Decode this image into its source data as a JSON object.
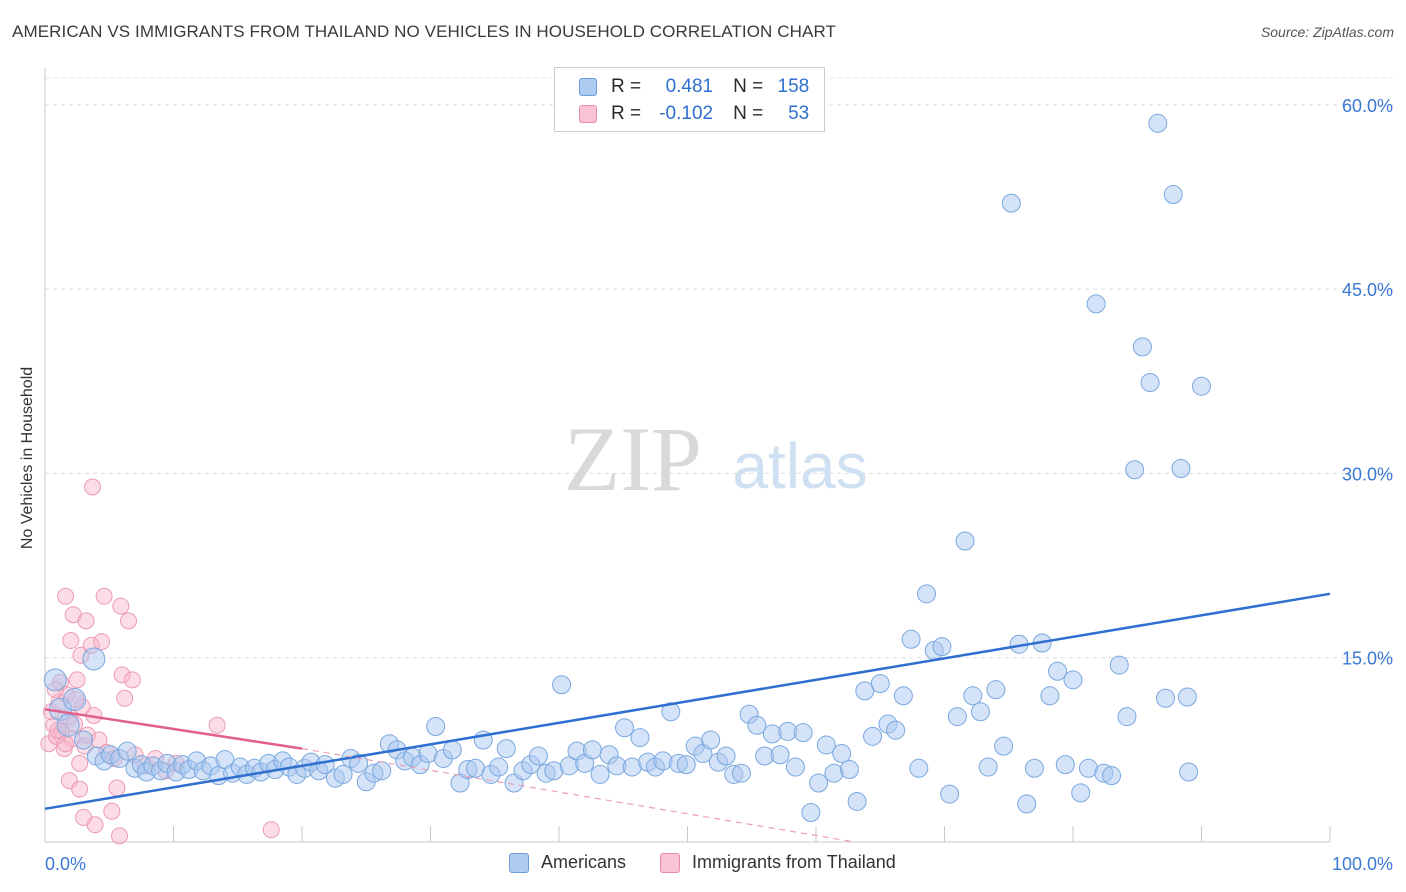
{
  "title": "AMERICAN VS IMMIGRANTS FROM THAILAND NO VEHICLES IN HOUSEHOLD CORRELATION CHART",
  "source": "Source: ZipAtlas.com",
  "watermark": {
    "zip": "ZIP",
    "atlas": "atlas"
  },
  "legend": {
    "r_label": "R =",
    "n_label": "N =",
    "rows": [
      {
        "name": "Americans",
        "r": "0.481",
        "n": "158",
        "color": "#aecbf0",
        "stroke": "#6a9fdc"
      },
      {
        "name": "Immigrants from Thailand",
        "r": "-0.102",
        "n": "53",
        "color": "#f8c3d3",
        "stroke": "#e88aa8"
      }
    ]
  },
  "chart_data": {
    "type": "scatter",
    "ylabel": "No Vehicles in Household",
    "xlim": [
      0,
      100
    ],
    "ylim": [
      0,
      63
    ],
    "x_tick_labels": [
      "0.0%",
      "100.0%"
    ],
    "y_ticks": [
      15,
      30,
      45,
      60
    ],
    "y_tick_labels": [
      "15.0%",
      "30.0%",
      "45.0%",
      "60.0%"
    ],
    "grid": true,
    "colors": {
      "blue": "#2f6fd0",
      "pink": "#e0608a",
      "tick_label": "#3a78d4"
    },
    "series": [
      {
        "name": "Americans",
        "trend": {
          "x": [
            0,
            100
          ],
          "y": [
            2.7,
            20.2
          ],
          "style": "solid"
        },
        "points": [
          [
            0.8,
            13.2
          ],
          [
            1.2,
            10.8
          ],
          [
            1.8,
            9.5
          ],
          [
            2.3,
            11.6
          ],
          [
            3.0,
            8.3
          ],
          [
            3.8,
            14.9
          ],
          [
            4.0,
            7.0
          ],
          [
            4.6,
            6.6
          ],
          [
            5.1,
            7.1
          ],
          [
            5.8,
            6.8
          ],
          [
            6.4,
            7.4
          ],
          [
            7.0,
            6.0
          ],
          [
            7.5,
            6.3
          ],
          [
            7.9,
            5.7
          ],
          [
            8.4,
            6.2
          ],
          [
            9.0,
            5.8
          ],
          [
            9.5,
            6.4
          ],
          [
            10.2,
            5.7
          ],
          [
            10.7,
            6.3
          ],
          [
            11.2,
            5.9
          ],
          [
            11.8,
            6.6
          ],
          [
            12.3,
            5.8
          ],
          [
            12.9,
            6.2
          ],
          [
            13.5,
            5.4
          ],
          [
            14.0,
            6.7
          ],
          [
            14.6,
            5.6
          ],
          [
            15.2,
            6.1
          ],
          [
            15.7,
            5.5
          ],
          [
            16.3,
            6.0
          ],
          [
            16.8,
            5.7
          ],
          [
            17.4,
            6.4
          ],
          [
            17.9,
            5.9
          ],
          [
            18.5,
            6.6
          ],
          [
            19.0,
            6.1
          ],
          [
            19.6,
            5.5
          ],
          [
            20.2,
            6.0
          ],
          [
            20.7,
            6.5
          ],
          [
            21.3,
            5.8
          ],
          [
            21.8,
            6.3
          ],
          [
            22.6,
            5.2
          ],
          [
            23.2,
            5.5
          ],
          [
            23.8,
            6.8
          ],
          [
            24.4,
            6.4
          ],
          [
            25.0,
            4.9
          ],
          [
            25.6,
            5.6
          ],
          [
            26.2,
            5.8
          ],
          [
            26.8,
            8.0
          ],
          [
            27.4,
            7.5
          ],
          [
            28.0,
            6.6
          ],
          [
            28.6,
            6.9
          ],
          [
            29.2,
            6.3
          ],
          [
            29.8,
            7.2
          ],
          [
            30.4,
            9.4
          ],
          [
            31.0,
            6.8
          ],
          [
            31.7,
            7.5
          ],
          [
            32.3,
            4.8
          ],
          [
            32.9,
            5.9
          ],
          [
            33.5,
            6.0
          ],
          [
            34.1,
            8.3
          ],
          [
            34.7,
            5.5
          ],
          [
            35.3,
            6.1
          ],
          [
            35.9,
            7.6
          ],
          [
            36.5,
            4.8
          ],
          [
            37.2,
            5.8
          ],
          [
            37.8,
            6.3
          ],
          [
            38.4,
            7.0
          ],
          [
            39.0,
            5.6
          ],
          [
            39.6,
            5.8
          ],
          [
            40.2,
            12.8
          ],
          [
            40.8,
            6.2
          ],
          [
            41.4,
            7.4
          ],
          [
            42.0,
            6.4
          ],
          [
            42.6,
            7.5
          ],
          [
            43.2,
            5.5
          ],
          [
            43.9,
            7.1
          ],
          [
            44.5,
            6.2
          ],
          [
            45.1,
            9.3
          ],
          [
            45.7,
            6.1
          ],
          [
            46.3,
            8.5
          ],
          [
            46.9,
            6.5
          ],
          [
            47.5,
            6.1
          ],
          [
            48.1,
            6.6
          ],
          [
            48.7,
            10.6
          ],
          [
            49.3,
            6.4
          ],
          [
            49.9,
            6.3
          ],
          [
            50.6,
            7.8
          ],
          [
            51.2,
            7.2
          ],
          [
            51.8,
            8.3
          ],
          [
            52.4,
            6.5
          ],
          [
            53.0,
            7.0
          ],
          [
            53.6,
            5.5
          ],
          [
            54.2,
            5.6
          ],
          [
            54.8,
            10.4
          ],
          [
            55.4,
            9.5
          ],
          [
            56.0,
            7.0
          ],
          [
            56.6,
            8.8
          ],
          [
            57.2,
            7.1
          ],
          [
            57.8,
            9.0
          ],
          [
            58.4,
            6.1
          ],
          [
            59.0,
            8.9
          ],
          [
            59.6,
            2.4
          ],
          [
            60.2,
            4.8
          ],
          [
            60.8,
            7.9
          ],
          [
            61.4,
            5.6
          ],
          [
            62.0,
            7.2
          ],
          [
            62.6,
            5.9
          ],
          [
            63.2,
            3.3
          ],
          [
            63.8,
            12.3
          ],
          [
            64.4,
            8.6
          ],
          [
            65.0,
            12.9
          ],
          [
            65.6,
            9.6
          ],
          [
            66.2,
            9.1
          ],
          [
            66.8,
            11.9
          ],
          [
            67.4,
            16.5
          ],
          [
            68.0,
            6.0
          ],
          [
            68.6,
            20.2
          ],
          [
            69.2,
            15.6
          ],
          [
            69.8,
            15.9
          ],
          [
            70.4,
            3.9
          ],
          [
            71.0,
            10.2
          ],
          [
            71.6,
            24.5
          ],
          [
            72.2,
            11.9
          ],
          [
            72.8,
            10.6
          ],
          [
            73.4,
            6.1
          ],
          [
            74.0,
            12.4
          ],
          [
            74.6,
            7.8
          ],
          [
            75.2,
            52.0
          ],
          [
            75.8,
            16.1
          ],
          [
            76.4,
            3.1
          ],
          [
            77.0,
            6.0
          ],
          [
            77.6,
            16.2
          ],
          [
            78.2,
            11.9
          ],
          [
            78.8,
            13.9
          ],
          [
            79.4,
            6.3
          ],
          [
            80.0,
            13.2
          ],
          [
            80.6,
            4.0
          ],
          [
            81.2,
            6.0
          ],
          [
            81.8,
            43.8
          ],
          [
            82.4,
            5.6
          ],
          [
            83.0,
            5.4
          ],
          [
            83.6,
            14.4
          ],
          [
            84.2,
            10.2
          ],
          [
            84.8,
            30.3
          ],
          [
            85.4,
            40.3
          ],
          [
            86.0,
            37.4
          ],
          [
            86.6,
            58.5
          ],
          [
            87.2,
            11.7
          ],
          [
            87.8,
            52.7
          ],
          [
            88.4,
            30.4
          ],
          [
            89.0,
            5.7
          ],
          [
            90.0,
            37.1
          ],
          [
            88.9,
            11.8
          ]
        ]
      },
      {
        "name": "Immigrants from Thailand",
        "trend": {
          "x": [
            0,
            20
          ],
          "y": [
            10.8,
            7.6
          ],
          "style": "solid",
          "dashed_extension": {
            "x": [
              20,
              63
            ],
            "y": [
              7.6,
              0
            ]
          }
        },
        "points": [
          [
            0.3,
            8.0
          ],
          [
            0.5,
            10.6
          ],
          [
            0.7,
            9.5
          ],
          [
            0.9,
            8.6
          ],
          [
            1.1,
            11.4
          ],
          [
            1.3,
            9.0
          ],
          [
            1.5,
            7.6
          ],
          [
            1.7,
            12.0
          ],
          [
            1.9,
            10.2
          ],
          [
            2.1,
            8.4
          ],
          [
            2.3,
            9.6
          ],
          [
            2.5,
            13.2
          ],
          [
            2.7,
            6.4
          ],
          [
            2.9,
            11.0
          ],
          [
            3.1,
            7.8
          ],
          [
            3.3,
            8.7
          ],
          [
            1.6,
            20.0
          ],
          [
            2.2,
            18.5
          ],
          [
            2.0,
            16.4
          ],
          [
            3.2,
            18.0
          ],
          [
            2.8,
            15.2
          ],
          [
            3.6,
            16.0
          ],
          [
            4.4,
            16.3
          ],
          [
            4.6,
            20.0
          ],
          [
            3.7,
            28.9
          ],
          [
            5.9,
            19.2
          ],
          [
            6.5,
            18.0
          ],
          [
            6.0,
            13.6
          ],
          [
            6.2,
            11.7
          ],
          [
            6.8,
            13.2
          ],
          [
            3.8,
            10.3
          ],
          [
            4.2,
            8.3
          ],
          [
            4.8,
            7.3
          ],
          [
            5.4,
            6.8
          ],
          [
            5.6,
            4.4
          ],
          [
            7.0,
            7.1
          ],
          [
            7.8,
            6.2
          ],
          [
            8.6,
            6.8
          ],
          [
            9.4,
            5.8
          ],
          [
            10.2,
            6.4
          ],
          [
            13.4,
            9.5
          ],
          [
            1.9,
            5.0
          ],
          [
            2.7,
            4.3
          ],
          [
            3.9,
            1.4
          ],
          [
            5.2,
            2.5
          ],
          [
            5.8,
            0.5
          ],
          [
            17.6,
            1.0
          ],
          [
            3.0,
            2.0
          ],
          [
            1.2,
            13.0
          ],
          [
            0.8,
            12.4
          ],
          [
            2.4,
            11.6
          ],
          [
            1.0,
            9.1
          ],
          [
            1.6,
            8.0
          ]
        ]
      }
    ]
  }
}
